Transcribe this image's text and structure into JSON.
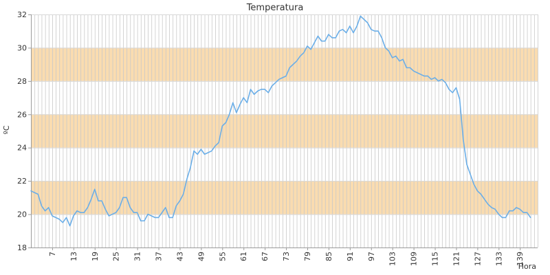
{
  "chart_data": {
    "type": "line",
    "title": "Temperatura",
    "xlabel": "Hora",
    "ylabel": "ºC",
    "xlim": [
      1,
      144
    ],
    "ylim": [
      18,
      32
    ],
    "x_ticks": [
      7,
      13,
      19,
      25,
      31,
      37,
      43,
      49,
      55,
      61,
      67,
      73,
      79,
      85,
      91,
      97,
      103,
      109,
      115,
      121,
      127,
      133,
      139
    ],
    "y_ticks": [
      18,
      20,
      22,
      24,
      26,
      28,
      30,
      32
    ],
    "grid": true,
    "bands": [
      [
        20,
        22
      ],
      [
        24,
        26
      ],
      [
        28,
        30
      ]
    ],
    "colors": {
      "line": "#6aaee8",
      "band": "#fadcb0",
      "grid": "#c8c8c8",
      "axis": "#9a9a9a"
    },
    "series": [
      {
        "values": [
          21.4,
          21.3,
          21.2,
          20.5,
          20.2,
          20.4,
          19.9,
          19.8,
          19.7,
          19.5,
          19.8,
          19.3,
          19.9,
          20.2,
          20.1,
          20.1,
          20.4,
          20.9,
          21.5,
          20.8,
          20.8,
          20.3,
          19.9,
          20.0,
          20.1,
          20.4,
          21.0,
          21.0,
          20.4,
          20.1,
          20.1,
          19.6,
          19.6,
          20.0,
          19.9,
          19.8,
          19.8,
          20.1,
          20.4,
          19.8,
          19.8,
          20.5,
          20.8,
          21.2,
          22.1,
          22.8,
          23.8,
          23.6,
          23.9,
          23.6,
          23.7,
          23.8,
          24.1,
          24.3,
          25.3,
          25.5,
          26.0,
          26.7,
          26.1,
          26.6,
          27.0,
          26.7,
          27.5,
          27.2,
          27.4,
          27.5,
          27.5,
          27.3,
          27.7,
          27.9,
          28.1,
          28.2,
          28.3,
          28.8,
          29.0,
          29.2,
          29.5,
          29.7,
          30.1,
          29.9,
          30.3,
          30.7,
          30.4,
          30.4,
          30.8,
          30.6,
          30.6,
          31.0,
          31.1,
          30.9,
          31.3,
          30.9,
          31.3,
          31.9,
          31.7,
          31.5,
          31.1,
          31.0,
          31.0,
          30.6,
          30.0,
          29.8,
          29.4,
          29.5,
          29.2,
          29.3,
          28.8,
          28.8,
          28.6,
          28.5,
          28.4,
          28.3,
          28.3,
          28.1,
          28.2,
          28.0,
          28.1,
          27.9,
          27.5,
          27.3,
          27.6,
          26.9,
          24.5,
          23.0,
          22.4,
          21.8,
          21.4,
          21.2,
          20.9,
          20.6,
          20.4,
          20.3,
          20.0,
          19.8,
          19.8,
          20.2,
          20.2,
          20.4,
          20.3,
          20.1,
          20.1,
          19.8
        ]
      }
    ]
  }
}
